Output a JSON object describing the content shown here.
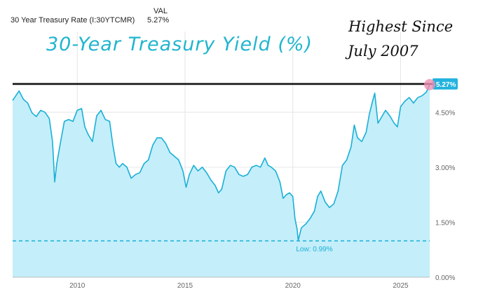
{
  "legend": {
    "series_label": "30 Year Treasury Rate (I:30YTCMR)",
    "val_header": "VAL",
    "val_value": "5.27%"
  },
  "annotations": {
    "overlay_title": "30-Year Treasury Yield (%)",
    "note_line1": "Highest Since",
    "note_line2": "July 2007",
    "low_label": "Low: 0.99%",
    "current_badge": "5.27%"
  },
  "colors": {
    "line": "#19b0d6",
    "fill": "#c4eefa",
    "badge": "#22b3de",
    "title_text": "#21b5cf",
    "marker": "#ee8fb3",
    "ref_line": "#111111"
  },
  "chart_data": {
    "type": "area",
    "title": "",
    "xlabel": "",
    "ylabel": "",
    "x_ticks": [
      "2010",
      "2015",
      "2020",
      "2025"
    ],
    "y_ticks": [
      "0.00%",
      "1.50%",
      "3.00%",
      "4.50%"
    ],
    "ylim": [
      0,
      6.7
    ],
    "grid": true,
    "series": [
      {
        "name": "30 Year Treasury Rate (I:30YTCMR)",
        "x": [
          2007.0,
          2007.15,
          2007.3,
          2007.5,
          2007.7,
          2007.9,
          2008.1,
          2008.3,
          2008.5,
          2008.7,
          2008.85,
          2008.95,
          2009.05,
          2009.2,
          2009.4,
          2009.6,
          2009.8,
          2010.0,
          2010.2,
          2010.35,
          2010.5,
          2010.7,
          2010.9,
          2011.1,
          2011.3,
          2011.5,
          2011.65,
          2011.8,
          2011.95,
          2012.1,
          2012.3,
          2012.5,
          2012.7,
          2012.9,
          2013.1,
          2013.3,
          2013.5,
          2013.7,
          2013.9,
          2014.1,
          2014.3,
          2014.5,
          2014.7,
          2014.9,
          2015.05,
          2015.2,
          2015.4,
          2015.6,
          2015.8,
          2016.0,
          2016.2,
          2016.4,
          2016.55,
          2016.7,
          2016.9,
          2017.1,
          2017.3,
          2017.5,
          2017.7,
          2017.9,
          2018.1,
          2018.3,
          2018.5,
          2018.7,
          2018.85,
          2019.0,
          2019.2,
          2019.4,
          2019.55,
          2019.7,
          2019.85,
          2020.0,
          2020.1,
          2020.2,
          2020.25,
          2020.4,
          2020.6,
          2020.8,
          2021.0,
          2021.15,
          2021.3,
          2021.5,
          2021.7,
          2021.9,
          2022.1,
          2022.3,
          2022.5,
          2022.7,
          2022.85,
          2023.0,
          2023.2,
          2023.4,
          2023.55,
          2023.7,
          2023.8,
          2023.95,
          2024.1,
          2024.3,
          2024.5,
          2024.7,
          2024.85,
          2025.0,
          2025.2,
          2025.4,
          2025.6,
          2025.8,
          2026.0,
          2026.2,
          2026.35
        ],
        "values": [
          4.82,
          4.95,
          5.08,
          4.85,
          4.75,
          4.48,
          4.38,
          4.55,
          4.5,
          4.33,
          3.7,
          2.6,
          3.1,
          3.6,
          4.25,
          4.3,
          4.25,
          4.55,
          4.6,
          4.1,
          3.9,
          3.7,
          4.4,
          4.55,
          4.3,
          4.25,
          3.6,
          3.1,
          3.0,
          3.1,
          3.0,
          2.7,
          2.8,
          2.85,
          3.1,
          3.2,
          3.6,
          3.8,
          3.8,
          3.65,
          3.4,
          3.3,
          3.2,
          2.9,
          2.45,
          2.8,
          3.05,
          2.9,
          3.0,
          2.85,
          2.65,
          2.5,
          2.3,
          2.4,
          2.9,
          3.05,
          3.0,
          2.8,
          2.75,
          2.8,
          3.0,
          3.05,
          3.0,
          3.25,
          3.05,
          3.0,
          2.9,
          2.6,
          2.15,
          2.25,
          2.3,
          2.2,
          1.6,
          1.3,
          1.0,
          1.35,
          1.45,
          1.6,
          1.8,
          2.2,
          2.35,
          2.05,
          1.9,
          2.0,
          2.35,
          3.05,
          3.2,
          3.55,
          4.15,
          3.8,
          3.7,
          3.95,
          4.45,
          4.8,
          5.02,
          4.2,
          4.35,
          4.55,
          4.4,
          4.2,
          4.1,
          4.65,
          4.8,
          4.9,
          4.75,
          4.9,
          4.95,
          5.05,
          5.27
        ]
      }
    ],
    "min_value": 0.99,
    "min_label": "Low: 0.99%",
    "reference_value": 5.27,
    "last_value": 5.27
  }
}
